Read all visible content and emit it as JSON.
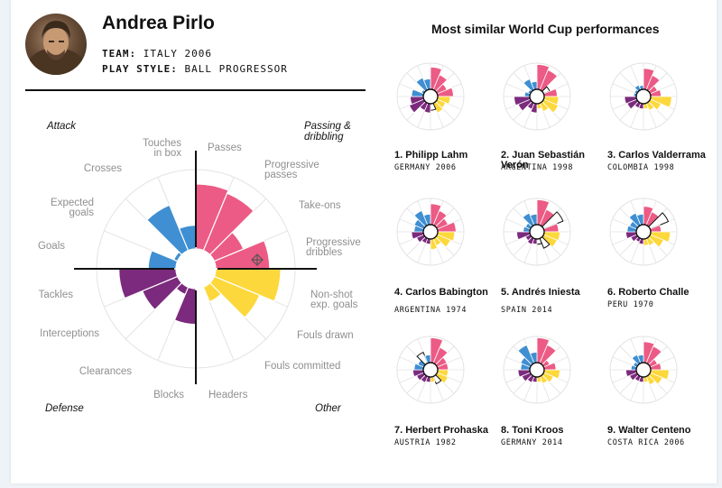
{
  "player": {
    "name": "Andrea Pirlo",
    "team_label": "TEAM:",
    "team_value": "ITALY 2006",
    "style_label": "PLAY STYLE:",
    "style_value": "BALL PROGRESSOR"
  },
  "quadrants": {
    "attack": "Attack",
    "passing": "Passing &",
    "dribbling": "dribbling",
    "defense": "Defense",
    "other": "Other"
  },
  "colors": {
    "attack": "#3f8fd2",
    "passing": "#ec5b85",
    "other": "#fcd83c",
    "defense": "#7b2a7d",
    "grid": "#e3e3e3"
  },
  "chart_data": {
    "type": "polar-area",
    "metrics": [
      {
        "label": "Passes",
        "group": "passing",
        "value": 0.82
      },
      {
        "label": "Progressive passes",
        "group": "passing",
        "value": 0.78
      },
      {
        "label": "Take-ons",
        "group": "passing",
        "value": 0.4
      },
      {
        "label": "Progressive dribbles",
        "group": "passing",
        "value": 0.68
      },
      {
        "label": "Non-shot exp. goals",
        "group": "other",
        "value": 0.82
      },
      {
        "label": "Fouls drawn",
        "group": "other",
        "value": 0.62
      },
      {
        "label": "Fouls committed",
        "group": "other",
        "value": 0.2
      },
      {
        "label": "Headers",
        "group": "other",
        "value": 0.0
      },
      {
        "label": "Blocks",
        "group": "defense",
        "value": 0.45
      },
      {
        "label": "Clearances",
        "group": "defense",
        "value": 0.1
      },
      {
        "label": "Interceptions",
        "group": "defense",
        "value": 0.48
      },
      {
        "label": "Tackles",
        "group": "defense",
        "value": 0.72
      },
      {
        "label": "Goals",
        "group": "attack",
        "value": 0.35
      },
      {
        "label": "Expected goals",
        "group": "attack",
        "value": 0.05
      },
      {
        "label": "Crosses",
        "group": "attack",
        "value": 0.62
      },
      {
        "label": "Touches in box",
        "group": "attack",
        "value": 0.3
      }
    ]
  },
  "similar": {
    "title": "Most similar World Cup performances",
    "players": [
      {
        "name": "1. Philipp Lahm",
        "team": "GERMANY 2006",
        "values": [
          0.85,
          0.62,
          0.4,
          0.6,
          0.48,
          0.35,
          0.4,
          0.25,
          0.35,
          0.3,
          0.6,
          0.5,
          0.45,
          0.1,
          0.5,
          0.4
        ],
        "outline": [
          0,
          0,
          0,
          0,
          0,
          0,
          0,
          1,
          0,
          0,
          0,
          0,
          0,
          0,
          0,
          0
        ]
      },
      {
        "name": "2. Juan Sebastián Verón",
        "team": "ARGENTINA 1998",
        "values": [
          0.95,
          0.82,
          0.25,
          0.5,
          0.55,
          0.6,
          0.35,
          0.2,
          0.35,
          0.25,
          0.5,
          0.6,
          0.2,
          0.1,
          0.45,
          0.3
        ],
        "outline": [
          0,
          0,
          1,
          0,
          0,
          0,
          0,
          0,
          0,
          0,
          0,
          0,
          0,
          0,
          0,
          0
        ]
      },
      {
        "name": "3. Carlos Valderrama",
        "team": "COLOMBIA 1998",
        "values": [
          0.8,
          0.6,
          0.3,
          0.4,
          0.8,
          0.45,
          0.3,
          0.2,
          0.2,
          0.2,
          0.4,
          0.45,
          0.1,
          0.1,
          0.2,
          0.15
        ],
        "outline": [
          0,
          0,
          0,
          0,
          0,
          0,
          0,
          0,
          0,
          0,
          0,
          0,
          0,
          0,
          0,
          0
        ]
      },
      {
        "name": "4. Carlos Babington",
        "team": "ARGENTINA 1974",
        "values": [
          0.8,
          0.6,
          0.45,
          0.7,
          0.65,
          0.55,
          0.3,
          0.4,
          0.2,
          0.2,
          0.3,
          0.45,
          0.35,
          0.4,
          0.6,
          0.4
        ],
        "outline": [
          0,
          0,
          0,
          0,
          0,
          0,
          0,
          0,
          0,
          0,
          0,
          0,
          0,
          0,
          0,
          0
        ]
      },
      {
        "name": "5. Andrés Iniesta",
        "team": "SPAIN 2014",
        "values": [
          0.95,
          0.65,
          0.8,
          0.55,
          0.6,
          0.55,
          0.4,
          0.2,
          0.2,
          0.25,
          0.2,
          0.5,
          0.25,
          0.2,
          0.5,
          0.4
        ],
        "outline": [
          0,
          0,
          1,
          0,
          0,
          0,
          1,
          1,
          0,
          0,
          0,
          0,
          0,
          0,
          0,
          0
        ]
      },
      {
        "name": "6. Roberto Challe",
        "team": "PERU 1970",
        "values": [
          0.7,
          0.55,
          0.75,
          0.4,
          0.75,
          0.55,
          0.3,
          0.25,
          0.2,
          0.15,
          0.25,
          0.4,
          0.35,
          0.3,
          0.5,
          0.4
        ],
        "outline": [
          0,
          0,
          1,
          0,
          0,
          0,
          0,
          0,
          0,
          0,
          0,
          0,
          0,
          0,
          0,
          0
        ]
      },
      {
        "name": "7. Herbert Prohaska",
        "team": "AUSTRIA 1982",
        "values": [
          0.95,
          0.65,
          0.4,
          0.4,
          0.4,
          0.45,
          0.3,
          0.2,
          0.2,
          0.25,
          0.3,
          0.4,
          0.35,
          0.25,
          0.45,
          0.3
        ],
        "outline": [
          0,
          0,
          0,
          0,
          0,
          0,
          1,
          0,
          0,
          0,
          0,
          0,
          0,
          0,
          1,
          0
        ]
      },
      {
        "name": "8. Toni Kroos",
        "team": "GERMANY 2014",
        "values": [
          0.95,
          0.75,
          0.25,
          0.45,
          0.6,
          0.4,
          0.3,
          0.2,
          0.2,
          0.25,
          0.35,
          0.45,
          0.35,
          0.4,
          0.75,
          0.4
        ],
        "outline": [
          0,
          0,
          0,
          0,
          0,
          0,
          0,
          0,
          0,
          0,
          0,
          0,
          0,
          0,
          0,
          0
        ]
      },
      {
        "name": "9. Walter Centeno",
        "team": "COSTA RICA 2006",
        "values": [
          0.8,
          0.7,
          0.3,
          0.4,
          0.7,
          0.5,
          0.35,
          0.2,
          0.2,
          0.2,
          0.3,
          0.4,
          0.2,
          0.15,
          0.35,
          0.3
        ],
        "outline": [
          0,
          0,
          0,
          0,
          0,
          0,
          0,
          0,
          0,
          0,
          0,
          0,
          0,
          0,
          0,
          0
        ]
      }
    ]
  }
}
